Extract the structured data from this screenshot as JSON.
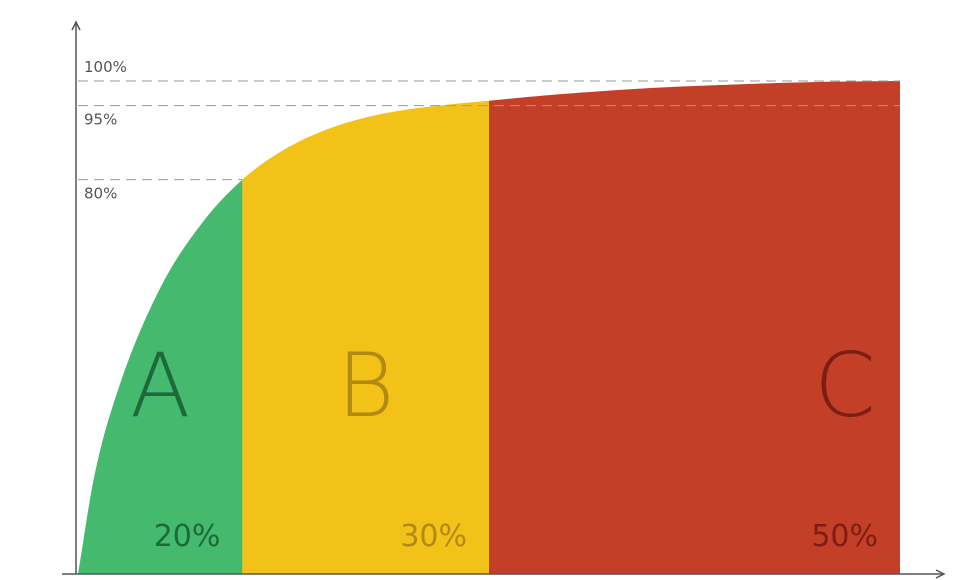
{
  "chart_data": {
    "type": "area",
    "title": "",
    "xlabel": "",
    "ylabel": "",
    "xlim": [
      0,
      100
    ],
    "ylim": [
      0,
      100
    ],
    "grid": false,
    "curve": {
      "x": [
        0,
        2,
        5,
        10,
        15,
        20,
        25,
        30,
        35,
        40,
        45,
        50,
        55,
        60,
        70,
        80,
        90,
        100
      ],
      "y": [
        0,
        20,
        38,
        58,
        71,
        80,
        86,
        90,
        92.6,
        94.2,
        95.2,
        96,
        96.8,
        97.5,
        98.6,
        99.3,
        99.8,
        100
      ]
    },
    "y_ticks": [
      {
        "value": 100,
        "label": "100%"
      },
      {
        "value": 95,
        "label": "95%"
      },
      {
        "value": 80,
        "label": "80%"
      }
    ],
    "zones": [
      {
        "label": "A",
        "share_label": "20%",
        "x_start": 0,
        "x_end": 20,
        "fill": "#45b96e",
        "text_color": "#1c6a3a"
      },
      {
        "label": "B",
        "share_label": "30%",
        "x_start": 20,
        "x_end": 50,
        "fill": "#f2c218",
        "text_color": "#b08a14"
      },
      {
        "label": "C",
        "share_label": "50%",
        "x_start": 50,
        "x_end": 100,
        "fill": "#c43f28",
        "text_color": "#7e1d12"
      }
    ]
  }
}
